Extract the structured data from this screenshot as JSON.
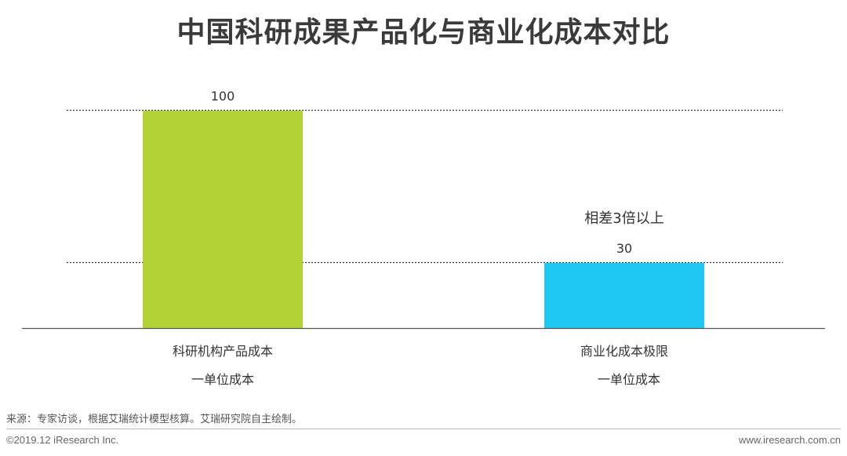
{
  "title": "中国科研成果产品化与商业化成本对比",
  "chart_data": {
    "type": "bar",
    "categories": [
      "科研机构产品成本",
      "商业化成本极限"
    ],
    "category_sublabels": [
      "一单位成本",
      "一单位成本"
    ],
    "values": [
      100,
      30
    ],
    "colors": [
      "#b2d235",
      "#1ec8f0"
    ],
    "data_labels": [
      "100",
      "30"
    ],
    "annotation": "相差3倍以上",
    "ylim": [
      0,
      100
    ],
    "reference_lines": [
      100,
      30
    ],
    "title": "中国科研成果产品化与商业化成本对比",
    "xlabel": "",
    "ylabel": "",
    "grid": false,
    "legend": "none"
  },
  "footer": {
    "source": "来源：专家访谈，根据艾瑞统计模型核算。艾瑞研究院自主绘制。",
    "copyright": "©2019.12 iResearch Inc.",
    "website": "www.iresearch.com.cn"
  }
}
